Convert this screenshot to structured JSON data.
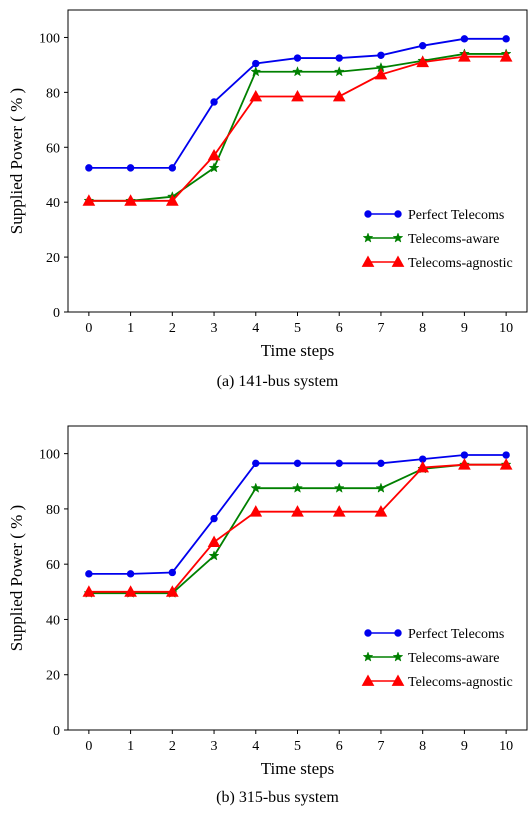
{
  "chart_data": [
    {
      "type": "line",
      "caption": "(a) 141-bus system",
      "xlabel": "Time steps",
      "ylabel": "Supplied Power ( % )",
      "x": [
        0,
        1,
        2,
        3,
        4,
        5,
        6,
        7,
        8,
        9,
        10
      ],
      "xlim": [
        -0.5,
        10.5
      ],
      "ylim": [
        0,
        110
      ],
      "xticks": [
        "0",
        "1",
        "2",
        "3",
        "4",
        "5",
        "6",
        "7",
        "8",
        "9",
        "10"
      ],
      "yticks": [
        "0",
        "20",
        "40",
        "60",
        "80",
        "100"
      ],
      "legend_position": "center-right",
      "series": [
        {
          "name": "Perfect Telecoms",
          "color": "#0000ee",
          "marker": "circle",
          "values": [
            52.5,
            52.5,
            52.5,
            76.5,
            90.5,
            92.5,
            92.5,
            93.5,
            97,
            99.5,
            99.5
          ]
        },
        {
          "name": "Telecoms-aware",
          "color": "#008000",
          "marker": "star",
          "values": [
            40.5,
            40.5,
            42,
            52.5,
            87.5,
            87.5,
            87.5,
            89,
            91.5,
            94,
            94
          ]
        },
        {
          "name": "Telecoms-agnostic",
          "color": "#ff0000",
          "marker": "triangle",
          "values": [
            40.5,
            40.5,
            40.5,
            57,
            78.5,
            78.5,
            78.5,
            86.5,
            91,
            93,
            93
          ]
        }
      ]
    },
    {
      "type": "line",
      "caption": "(b) 315-bus system",
      "xlabel": "Time steps",
      "ylabel": "Supplied Power ( % )",
      "x": [
        0,
        1,
        2,
        3,
        4,
        5,
        6,
        7,
        8,
        9,
        10
      ],
      "xlim": [
        -0.5,
        10.5
      ],
      "ylim": [
        0,
        110
      ],
      "xticks": [
        "0",
        "1",
        "2",
        "3",
        "4",
        "5",
        "6",
        "7",
        "8",
        "9",
        "10"
      ],
      "yticks": [
        "0",
        "20",
        "40",
        "60",
        "80",
        "100"
      ],
      "legend_position": "center-right",
      "series": [
        {
          "name": "Perfect Telecoms",
          "color": "#0000ee",
          "marker": "circle",
          "values": [
            56.5,
            56.5,
            57,
            76.5,
            96.5,
            96.5,
            96.5,
            96.5,
            98,
            99.5,
            99.5
          ]
        },
        {
          "name": "Telecoms-aware",
          "color": "#008000",
          "marker": "star",
          "values": [
            49.5,
            49.5,
            49.5,
            63,
            87.5,
            87.5,
            87.5,
            87.5,
            94.5,
            96,
            96
          ]
        },
        {
          "name": "Telecoms-agnostic",
          "color": "#ff0000",
          "marker": "triangle",
          "values": [
            50,
            50,
            50,
            68,
            79,
            79,
            79,
            79,
            95,
            96,
            96
          ]
        }
      ]
    }
  ]
}
